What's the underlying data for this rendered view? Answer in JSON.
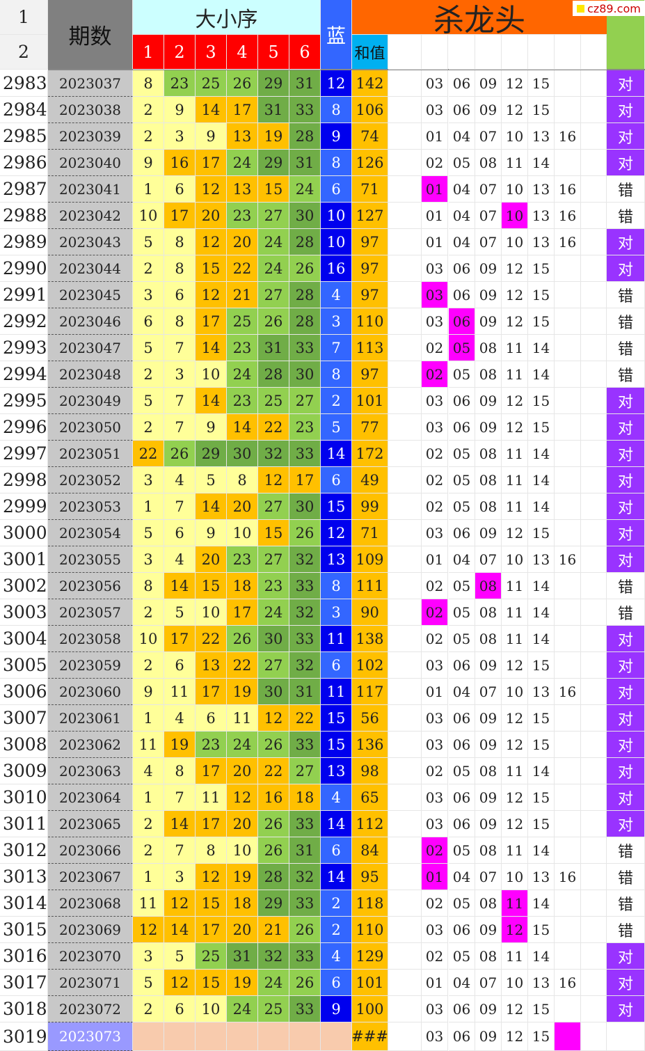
{
  "logo": "cz89.com",
  "header": {
    "row1": "1",
    "row2": "2",
    "period": "期数",
    "order_group": "大小序",
    "order_cols": [
      "1",
      "2",
      "3",
      "4",
      "5",
      "6"
    ],
    "blue": "蓝",
    "sum": "和值",
    "kill": "杀龙头"
  },
  "colors": {
    "small": "#ffff99",
    "mid_low": "#ffc000",
    "mid_high": "#92d050",
    "big": "#70ad47",
    "blue_small": "#3366ff",
    "blue_big": "#0000ee",
    "sum": "#ffc000",
    "highlight": "#ff00ff",
    "correct": "#9933ff",
    "kill_header": "#ff6600"
  },
  "rows": [
    {
      "idx": "2983",
      "period": "2023037",
      "balls": [
        "8",
        "23",
        "25",
        "26",
        "29",
        "31"
      ],
      "blue": "12",
      "sum": "142",
      "kill": [
        "03",
        "06",
        "09",
        "12",
        "15",
        ""
      ],
      "hit": -1,
      "result": "对"
    },
    {
      "idx": "2984",
      "period": "2023038",
      "balls": [
        "2",
        "9",
        "14",
        "17",
        "31",
        "33"
      ],
      "blue": "8",
      "sum": "106",
      "kill": [
        "03",
        "06",
        "09",
        "12",
        "15",
        ""
      ],
      "hit": -1,
      "result": "对"
    },
    {
      "idx": "2985",
      "period": "2023039",
      "balls": [
        "2",
        "3",
        "9",
        "13",
        "19",
        "28"
      ],
      "blue": "9",
      "sum": "74",
      "kill": [
        "01",
        "04",
        "07",
        "10",
        "13",
        "16"
      ],
      "hit": -1,
      "result": "对"
    },
    {
      "idx": "2986",
      "period": "2023040",
      "balls": [
        "9",
        "16",
        "17",
        "24",
        "29",
        "31"
      ],
      "blue": "8",
      "sum": "126",
      "kill": [
        "02",
        "05",
        "08",
        "11",
        "14",
        ""
      ],
      "hit": -1,
      "result": "对"
    },
    {
      "idx": "2987",
      "period": "2023041",
      "balls": [
        "1",
        "6",
        "12",
        "13",
        "15",
        "24"
      ],
      "blue": "6",
      "sum": "71",
      "kill": [
        "01",
        "04",
        "07",
        "10",
        "13",
        "16"
      ],
      "hit": 0,
      "result": "错"
    },
    {
      "idx": "2988",
      "period": "2023042",
      "balls": [
        "10",
        "17",
        "20",
        "23",
        "27",
        "30"
      ],
      "blue": "10",
      "sum": "127",
      "kill": [
        "01",
        "04",
        "07",
        "10",
        "13",
        "16"
      ],
      "hit": 3,
      "result": "错"
    },
    {
      "idx": "2989",
      "period": "2023043",
      "balls": [
        "5",
        "8",
        "12",
        "20",
        "24",
        "28"
      ],
      "blue": "10",
      "sum": "97",
      "kill": [
        "01",
        "04",
        "07",
        "10",
        "13",
        "16"
      ],
      "hit": -1,
      "result": "对"
    },
    {
      "idx": "2990",
      "period": "2023044",
      "balls": [
        "2",
        "8",
        "15",
        "22",
        "24",
        "26"
      ],
      "blue": "16",
      "sum": "97",
      "kill": [
        "03",
        "06",
        "09",
        "12",
        "15",
        ""
      ],
      "hit": -1,
      "result": "对"
    },
    {
      "idx": "2991",
      "period": "2023045",
      "balls": [
        "3",
        "6",
        "12",
        "21",
        "27",
        "28"
      ],
      "blue": "4",
      "sum": "97",
      "kill": [
        "03",
        "06",
        "09",
        "12",
        "15",
        ""
      ],
      "hit": 0,
      "result": "错"
    },
    {
      "idx": "2992",
      "period": "2023046",
      "balls": [
        "6",
        "8",
        "17",
        "25",
        "26",
        "28"
      ],
      "blue": "3",
      "sum": "110",
      "kill": [
        "03",
        "06",
        "09",
        "12",
        "15",
        ""
      ],
      "hit": 1,
      "result": "错"
    },
    {
      "idx": "2993",
      "period": "2023047",
      "balls": [
        "5",
        "7",
        "14",
        "23",
        "31",
        "33"
      ],
      "blue": "7",
      "sum": "113",
      "kill": [
        "02",
        "05",
        "08",
        "11",
        "14",
        ""
      ],
      "hit": 1,
      "result": "错"
    },
    {
      "idx": "2994",
      "period": "2023048",
      "balls": [
        "2",
        "3",
        "10",
        "24",
        "28",
        "30"
      ],
      "blue": "8",
      "sum": "97",
      "kill": [
        "02",
        "05",
        "08",
        "11",
        "14",
        ""
      ],
      "hit": 0,
      "result": "错"
    },
    {
      "idx": "2995",
      "period": "2023049",
      "balls": [
        "5",
        "7",
        "14",
        "23",
        "25",
        "27"
      ],
      "blue": "2",
      "sum": "101",
      "kill": [
        "03",
        "06",
        "09",
        "12",
        "15",
        ""
      ],
      "hit": -1,
      "result": "对"
    },
    {
      "idx": "2996",
      "period": "2023050",
      "balls": [
        "2",
        "7",
        "9",
        "14",
        "22",
        "23"
      ],
      "blue": "5",
      "sum": "77",
      "kill": [
        "03",
        "06",
        "09",
        "12",
        "15",
        ""
      ],
      "hit": -1,
      "result": "对"
    },
    {
      "idx": "2997",
      "period": "2023051",
      "balls": [
        "22",
        "26",
        "29",
        "30",
        "32",
        "33"
      ],
      "blue": "14",
      "sum": "172",
      "kill": [
        "02",
        "05",
        "08",
        "11",
        "14",
        ""
      ],
      "hit": -1,
      "result": "对"
    },
    {
      "idx": "2998",
      "period": "2023052",
      "balls": [
        "3",
        "4",
        "5",
        "8",
        "12",
        "17"
      ],
      "blue": "6",
      "sum": "49",
      "kill": [
        "02",
        "05",
        "08",
        "11",
        "14",
        ""
      ],
      "hit": -1,
      "result": "对"
    },
    {
      "idx": "2999",
      "period": "2023053",
      "balls": [
        "1",
        "7",
        "14",
        "20",
        "27",
        "30"
      ],
      "blue": "15",
      "sum": "99",
      "kill": [
        "02",
        "05",
        "08",
        "11",
        "14",
        ""
      ],
      "hit": -1,
      "result": "对"
    },
    {
      "idx": "3000",
      "period": "2023054",
      "balls": [
        "5",
        "6",
        "9",
        "10",
        "15",
        "26"
      ],
      "blue": "12",
      "sum": "71",
      "kill": [
        "03",
        "06",
        "09",
        "12",
        "15",
        ""
      ],
      "hit": -1,
      "result": "对"
    },
    {
      "idx": "3001",
      "period": "2023055",
      "balls": [
        "3",
        "4",
        "20",
        "23",
        "27",
        "32"
      ],
      "blue": "13",
      "sum": "109",
      "kill": [
        "01",
        "04",
        "07",
        "10",
        "13",
        "16"
      ],
      "hit": -1,
      "result": "对"
    },
    {
      "idx": "3002",
      "period": "2023056",
      "balls": [
        "8",
        "14",
        "15",
        "18",
        "23",
        "33"
      ],
      "blue": "8",
      "sum": "111",
      "kill": [
        "02",
        "05",
        "08",
        "11",
        "14",
        ""
      ],
      "hit": 2,
      "result": "错"
    },
    {
      "idx": "3003",
      "period": "2023057",
      "balls": [
        "2",
        "5",
        "10",
        "17",
        "24",
        "32"
      ],
      "blue": "3",
      "sum": "90",
      "kill": [
        "02",
        "05",
        "08",
        "11",
        "14",
        ""
      ],
      "hit": 0,
      "result": "错"
    },
    {
      "idx": "3004",
      "period": "2023058",
      "balls": [
        "10",
        "17",
        "22",
        "26",
        "30",
        "33"
      ],
      "blue": "11",
      "sum": "138",
      "kill": [
        "02",
        "05",
        "08",
        "11",
        "14",
        ""
      ],
      "hit": -1,
      "result": "对"
    },
    {
      "idx": "3005",
      "period": "2023059",
      "balls": [
        "2",
        "6",
        "13",
        "22",
        "27",
        "32"
      ],
      "blue": "6",
      "sum": "102",
      "kill": [
        "03",
        "06",
        "09",
        "12",
        "15",
        ""
      ],
      "hit": -1,
      "result": "对"
    },
    {
      "idx": "3006",
      "period": "2023060",
      "balls": [
        "9",
        "11",
        "17",
        "19",
        "30",
        "31"
      ],
      "blue": "11",
      "sum": "117",
      "kill": [
        "01",
        "04",
        "07",
        "10",
        "13",
        "16"
      ],
      "hit": -1,
      "result": "对"
    },
    {
      "idx": "3007",
      "period": "2023061",
      "balls": [
        "1",
        "4",
        "6",
        "11",
        "12",
        "22"
      ],
      "blue": "15",
      "sum": "56",
      "kill": [
        "03",
        "06",
        "09",
        "12",
        "15",
        ""
      ],
      "hit": -1,
      "result": "对"
    },
    {
      "idx": "3008",
      "period": "2023062",
      "balls": [
        "11",
        "19",
        "23",
        "24",
        "26",
        "33"
      ],
      "blue": "15",
      "sum": "136",
      "kill": [
        "03",
        "06",
        "09",
        "12",
        "15",
        ""
      ],
      "hit": -1,
      "result": "对"
    },
    {
      "idx": "3009",
      "period": "2023063",
      "balls": [
        "4",
        "8",
        "17",
        "20",
        "22",
        "27"
      ],
      "blue": "13",
      "sum": "98",
      "kill": [
        "02",
        "05",
        "08",
        "11",
        "14",
        ""
      ],
      "hit": -1,
      "result": "对"
    },
    {
      "idx": "3010",
      "period": "2023064",
      "balls": [
        "1",
        "7",
        "11",
        "12",
        "16",
        "18"
      ],
      "blue": "4",
      "sum": "65",
      "kill": [
        "03",
        "06",
        "09",
        "12",
        "15",
        ""
      ],
      "hit": -1,
      "result": "对"
    },
    {
      "idx": "3011",
      "period": "2023065",
      "balls": [
        "2",
        "14",
        "17",
        "20",
        "26",
        "33"
      ],
      "blue": "14",
      "sum": "112",
      "kill": [
        "03",
        "06",
        "09",
        "12",
        "15",
        ""
      ],
      "hit": -1,
      "result": "对"
    },
    {
      "idx": "3012",
      "period": "2023066",
      "balls": [
        "2",
        "7",
        "8",
        "10",
        "26",
        "31"
      ],
      "blue": "6",
      "sum": "84",
      "kill": [
        "02",
        "05",
        "08",
        "11",
        "14",
        ""
      ],
      "hit": 0,
      "result": "错"
    },
    {
      "idx": "3013",
      "period": "2023067",
      "balls": [
        "1",
        "3",
        "12",
        "19",
        "28",
        "32"
      ],
      "blue": "14",
      "sum": "95",
      "kill": [
        "01",
        "04",
        "07",
        "10",
        "13",
        "16"
      ],
      "hit": 0,
      "result": "错"
    },
    {
      "idx": "3014",
      "period": "2023068",
      "balls": [
        "11",
        "12",
        "15",
        "18",
        "29",
        "33"
      ],
      "blue": "2",
      "sum": "118",
      "kill": [
        "02",
        "05",
        "08",
        "11",
        "14",
        ""
      ],
      "hit": 3,
      "result": "错"
    },
    {
      "idx": "3015",
      "period": "2023069",
      "balls": [
        "12",
        "14",
        "17",
        "20",
        "21",
        "26"
      ],
      "blue": "2",
      "sum": "110",
      "kill": [
        "03",
        "06",
        "09",
        "12",
        "15",
        ""
      ],
      "hit": 3,
      "result": "错"
    },
    {
      "idx": "3016",
      "period": "2023070",
      "balls": [
        "3",
        "5",
        "25",
        "31",
        "32",
        "33"
      ],
      "blue": "4",
      "sum": "129",
      "kill": [
        "02",
        "05",
        "08",
        "11",
        "14",
        ""
      ],
      "hit": -1,
      "result": "对"
    },
    {
      "idx": "3017",
      "period": "2023071",
      "balls": [
        "5",
        "12",
        "15",
        "19",
        "24",
        "26"
      ],
      "blue": "6",
      "sum": "101",
      "kill": [
        "01",
        "04",
        "07",
        "10",
        "13",
        "16"
      ],
      "hit": -1,
      "result": "对"
    },
    {
      "idx": "3018",
      "period": "2023072",
      "balls": [
        "2",
        "6",
        "10",
        "24",
        "25",
        "33"
      ],
      "blue": "9",
      "sum": "100",
      "kill": [
        "03",
        "06",
        "09",
        "12",
        "15",
        ""
      ],
      "hit": -1,
      "result": "对"
    },
    {
      "idx": "3019",
      "period": "2023073",
      "balls": [
        "",
        "",
        "",
        "",
        "",
        ""
      ],
      "blue": "",
      "sum": "###",
      "kill": [
        "03",
        "06",
        "09",
        "12",
        "15",
        ""
      ],
      "hit": 5,
      "result": ""
    }
  ]
}
